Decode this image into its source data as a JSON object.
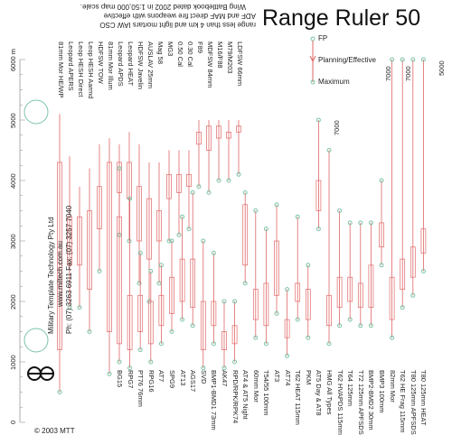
{
  "title": "Range Ruler 50",
  "legend": {
    "fp": "FP",
    "planning": "Planning/Effective",
    "maximum": "Maximum"
  },
  "note_lines": [
    "range less than 4 km and light mortars IAW CSO",
    "ADF and MAF direct fire weapons with effective",
    "Wing Battlebook dated 2002 in 1:50,000 map scale."
  ],
  "company": {
    "name": "Military Template Technology Pty Ltd",
    "web": "www.miltech.com.au",
    "phone": "Ph: (07) 3263 6911 Fax: (07) 3257 7040"
  },
  "copyright": "© 2003 MTT",
  "scale": {
    "unit": "m",
    "labels": [
      "0",
      "1000",
      "2000",
      "3000",
      "4000",
      "5000",
      "6000 m"
    ]
  },
  "labels_7000": [
    "7000",
    "7000",
    "7000",
    "5000"
  ],
  "weapons_top": [
    "81mm Mor HE/WP",
    "Leopard APERS",
    "Leop HESH Direct",
    "Leop HESH Aarmd",
    "HDFSW TOW",
    "81mm Mor Illum",
    "Leopard APDS",
    "Leopard HEAT",
    "HDFSW Javelin",
    "AUSLAV 25mm",
    "Mag 58",
    "MG3",
    "0.50 Cal",
    "0.30 Cal",
    "F89",
    "MDFSW 84mm",
    "M16/F88",
    "M79/M203",
    "LDFSW 66mm"
  ],
  "weapons_bottom": [
    "BG15",
    "RPG7",
    "PT76 76mm",
    "RPG16",
    "AT7",
    "SPG9",
    "AT13",
    "AGS17",
    "SVD",
    "BMP1-BMD1 73mm",
    "AK47",
    "RPD/RPK/RPK74",
    "AT4 & AT5 Night",
    "60mm Mor",
    "T54/55 100mm",
    "AT3",
    "AT74",
    "T62 HEAT 115mm",
    "PKM",
    "AT5 Day & AT8",
    "HMG All Types",
    "T62 HVAPDS 115mm",
    "T64 125mm",
    "T72 125mm APFSDS",
    "BMP2-BMD2 30mm",
    "BMP3 100mm",
    "82mm Mor",
    "T62 HE Frag 115mm",
    "T80 125mm APFSDS",
    "T80 125mm HEAT"
  ],
  "colors": {
    "line": "#e06666",
    "marker": "#7cc4a8",
    "bar": "#e06666",
    "text": "#222222",
    "grid": "#bbbbbb"
  }
}
